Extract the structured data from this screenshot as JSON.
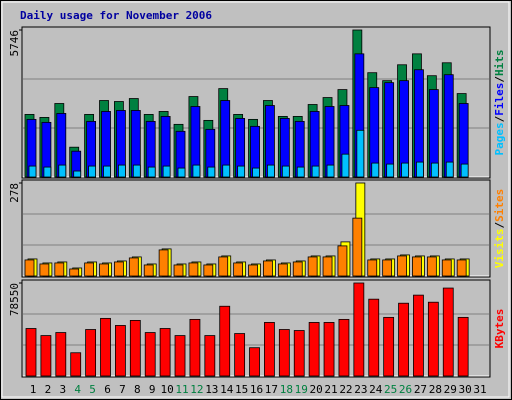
{
  "chart_data": [
    {
      "type": "bar",
      "title": "Daily usage for November 2006",
      "legend_separator": "/",
      "ylim": [
        0,
        5746
      ],
      "yticks": [
        5746
      ],
      "grid": true,
      "series": [
        {
          "name": "Hits",
          "color": "#008040",
          "values": [
            2446,
            2329,
            2873,
            1165,
            2446,
            2990,
            2951,
            3067,
            2446,
            2562,
            2058,
            3145,
            2213,
            3455,
            2446,
            2252,
            2990,
            2368,
            2368,
            2834,
            3106,
            3417,
            5746,
            4077,
            3766,
            4387,
            4814,
            3960,
            4465,
            3261,
            null
          ]
        },
        {
          "name": "Files",
          "color": "#0000FF",
          "values": [
            2252,
            2135,
            2485,
            1009,
            2174,
            2562,
            2601,
            2601,
            2174,
            2368,
            1786,
            2756,
            1863,
            2989,
            2290,
            1980,
            2795,
            2290,
            2174,
            2562,
            2756,
            2795,
            4814,
            3494,
            3688,
            3766,
            4193,
            3416,
            3999,
            2873,
            null
          ]
        },
        {
          "name": "Pages",
          "color": "#00C0FF",
          "values": [
            427,
            388,
            466,
            233,
            427,
            427,
            466,
            466,
            388,
            427,
            349,
            466,
            388,
            466,
            427,
            349,
            466,
            427,
            388,
            427,
            466,
            893,
            1825,
            544,
            505,
            544,
            583,
            544,
            583,
            505,
            null
          ]
        }
      ]
    },
    {
      "type": "bar",
      "legend_separator": "/",
      "ylim": [
        0,
        278
      ],
      "yticks": [
        278
      ],
      "grid": true,
      "series": [
        {
          "name": "Sites",
          "color": "#FF8000",
          "values": [
            48,
            36,
            39,
            21,
            39,
            36,
            42,
            54,
            33,
            78,
            33,
            39,
            33,
            57,
            39,
            33,
            45,
            36,
            42,
            57,
            57,
            90,
            173,
            48,
            48,
            60,
            57,
            57,
            48,
            48,
            null
          ]
        },
        {
          "name": "Visits",
          "color": "#FFFF00",
          "values": [
            51,
            39,
            42,
            24,
            42,
            39,
            45,
            57,
            36,
            81,
            36,
            42,
            36,
            60,
            42,
            36,
            48,
            39,
            45,
            60,
            60,
            102,
            278,
            51,
            51,
            63,
            60,
            60,
            51,
            51,
            null
          ]
        }
      ]
    },
    {
      "type": "bar",
      "ylim": [
        0,
        78550
      ],
      "yticks": [
        78550
      ],
      "grid": true,
      "categories": [
        "1",
        "2",
        "3",
        "4",
        "5",
        "6",
        "7",
        "8",
        "9",
        "10",
        "11",
        "12",
        "13",
        "14",
        "15",
        "16",
        "17",
        "18",
        "19",
        "20",
        "21",
        "22",
        "23",
        "24",
        "25",
        "26",
        "27",
        "28",
        "29",
        "30",
        "31"
      ],
      "highlight_indices": [
        3,
        4,
        10,
        11,
        17,
        18,
        24,
        25
      ],
      "highlight_color": "#008040",
      "series": [
        {
          "name": "KBytes",
          "color": "#FF0000",
          "values": [
            40129,
            34152,
            36713,
            19637,
            39275,
            48667,
            42690,
            46959,
            36713,
            40129,
            34152,
            47813,
            34152,
            58912,
            35860,
            23906,
            45251,
            39275,
            38421,
            45251,
            45251,
            47813,
            78550,
            64889,
            49520,
            61474,
            68304,
            62328,
            74280,
            49520,
            null
          ]
        }
      ]
    }
  ]
}
